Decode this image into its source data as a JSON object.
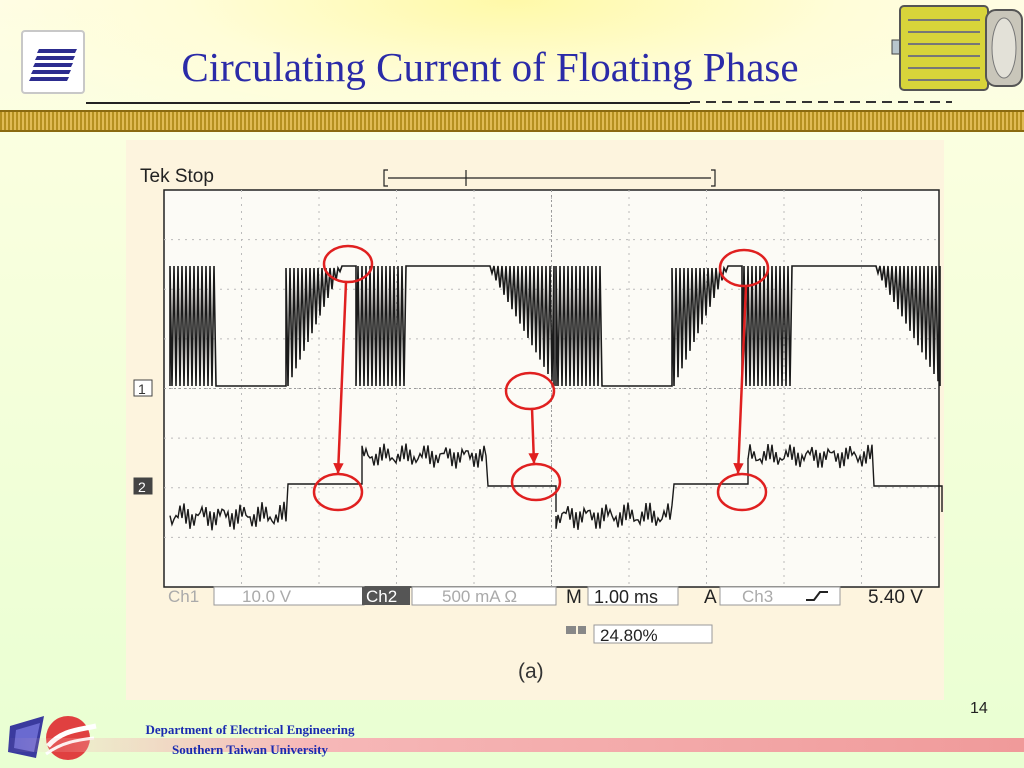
{
  "slide": {
    "title": "Circulating Current of  Floating Phase",
    "page_number": "14"
  },
  "footer": {
    "department": "Department of Electrical Engineering",
    "university": "Southern Taiwan University"
  },
  "scope": {
    "status": "Tek Stop",
    "ch1_marker": "1",
    "ch2_marker": "2",
    "ch1_label": "Ch1",
    "ch1_scale": "10.0 V",
    "ch2_label": "Ch2",
    "ch2_scale": "500 mA Ω",
    "time_label": "M",
    "time_scale": "1.00 ms",
    "trigger_label": "A",
    "trigger_source": "Ch3",
    "trigger_level": "5.40 V",
    "duty": "24.80%",
    "caption": "(a)"
  },
  "colors": {
    "title": "#2b2ba8",
    "footer_text": "#1a2bb0",
    "annotation": "#e02020"
  }
}
